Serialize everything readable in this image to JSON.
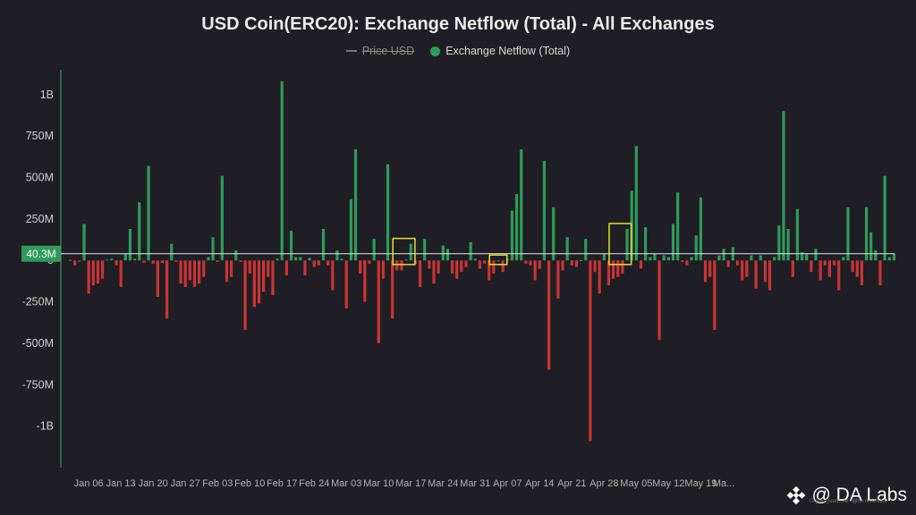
{
  "chart_data": {
    "type": "bar",
    "title": "USD Coin(ERC20): Exchange Netflow (Total) - All Exchanges",
    "legend": [
      {
        "name": "Price USD",
        "style": "line",
        "hidden": true
      },
      {
        "name": "Exchange Netflow (Total)",
        "style": "dot",
        "color": "#2e9b5a"
      }
    ],
    "legend_position": "top-center",
    "ylim": [
      -1250000000,
      1150000000
    ],
    "yticks": [
      {
        "label": "1B",
        "value": 1000000000
      },
      {
        "label": "750M",
        "value": 750000000
      },
      {
        "label": "500M",
        "value": 500000000
      },
      {
        "label": "250M",
        "value": 250000000
      },
      {
        "label": "0",
        "value": 0
      },
      {
        "label": "-250M",
        "value": -250000000
      },
      {
        "label": "-500M",
        "value": -500000000
      },
      {
        "label": "-750M",
        "value": -750000000
      },
      {
        "label": "-1B",
        "value": -1000000000
      }
    ],
    "xticks": [
      {
        "label": "Jan 06",
        "index": 4
      },
      {
        "label": "Jan 13",
        "index": 11
      },
      {
        "label": "Jan 20",
        "index": 18
      },
      {
        "label": "Jan 27",
        "index": 25
      },
      {
        "label": "Feb 03",
        "index": 32
      },
      {
        "label": "Feb 10",
        "index": 39
      },
      {
        "label": "Feb 17",
        "index": 46
      },
      {
        "label": "Feb 24",
        "index": 53
      },
      {
        "label": "Mar 03",
        "index": 60
      },
      {
        "label": "Mar 10",
        "index": 67
      },
      {
        "label": "Mar 17",
        "index": 74
      },
      {
        "label": "Mar 24",
        "index": 81
      },
      {
        "label": "Mar 31",
        "index": 88
      },
      {
        "label": "Apr 07",
        "index": 95
      },
      {
        "label": "Apr 14",
        "index": 102
      },
      {
        "label": "Apr 21",
        "index": 109
      },
      {
        "label": "Apr 28",
        "index": 116
      },
      {
        "label": "May 05",
        "index": 123
      },
      {
        "label": "May 12",
        "index": 130
      },
      {
        "label": "May 19",
        "index": 137
      },
      {
        "label": "Ma...",
        "index": 142
      }
    ],
    "current_value": {
      "label": "40.3M",
      "value": 40300000
    },
    "highlight_boxes": [
      [
        71,
        74
      ],
      [
        92,
        94
      ],
      [
        118,
        121
      ]
    ],
    "grid": false,
    "values": [
      3,
      -30,
      -8,
      220,
      -200,
      -150,
      -140,
      -110,
      5,
      10,
      -30,
      -160,
      40,
      190,
      10,
      350,
      -15,
      570,
      -20,
      -220,
      -15,
      -350,
      100,
      -10,
      -140,
      -160,
      -120,
      -160,
      -140,
      -100,
      20,
      140,
      -10,
      510,
      -130,
      -100,
      60,
      -10,
      -420,
      -80,
      -280,
      -260,
      -190,
      -100,
      -210,
      10,
      1080,
      -90,
      180,
      20,
      20,
      -90,
      15,
      -40,
      -30,
      190,
      -30,
      -180,
      60,
      10,
      -290,
      370,
      670,
      -80,
      -250,
      -20,
      130,
      -500,
      -110,
      580,
      -350,
      -60,
      -60,
      5,
      100,
      -20,
      -160,
      130,
      -50,
      -140,
      -80,
      90,
      70,
      -80,
      -110,
      -70,
      -40,
      110,
      10,
      -50,
      -20,
      -120,
      -80,
      0,
      -70,
      10,
      300,
      400,
      670,
      -20,
      -30,
      -120,
      -50,
      600,
      -660,
      320,
      -230,
      -60,
      140,
      -30,
      -40,
      1.4,
      130,
      -1090,
      -70,
      -200,
      40,
      -150,
      -110,
      -100,
      -80,
      190,
      420,
      690,
      -50,
      200,
      20,
      40,
      -480,
      30,
      20,
      220,
      410,
      -10,
      -30,
      20,
      150,
      380,
      -130,
      -100,
      -420,
      30,
      70,
      -40,
      80,
      -30,
      -120,
      -100,
      30,
      -170,
      30,
      -130,
      -180,
      20,
      210,
      900,
      190,
      -100,
      310,
      50,
      40,
      -70,
      70,
      -120,
      -30,
      -100,
      -30,
      -180,
      20,
      320,
      -70,
      -100,
      -150,
      320,
      170,
      60,
      -150,
      510,
      20,
      40
    ]
  },
  "watermark": {
    "text": "@ DA Labs"
  },
  "credit": "CryptoQuant. All rights reserved"
}
